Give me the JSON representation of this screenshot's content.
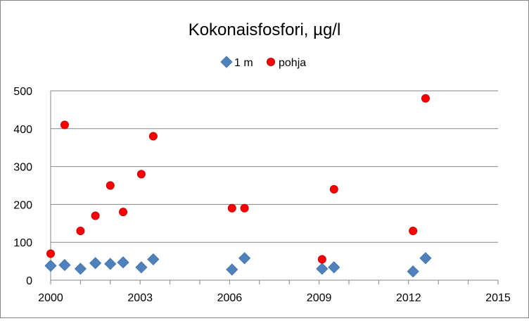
{
  "chart_data": {
    "type": "scatter",
    "title": "Kokonaisfosfori, µg/l",
    "xlabel": "",
    "ylabel": "",
    "xlim": [
      2000,
      2015
    ],
    "ylim": [
      0,
      500
    ],
    "xticks": [
      2000,
      2003,
      2006,
      2009,
      2012,
      2015
    ],
    "yticks": [
      0,
      100,
      200,
      300,
      400,
      500
    ],
    "grid": "horizontal",
    "legend": "top-center",
    "series": [
      {
        "name": "1 m",
        "color": "#4F81BD",
        "marker": "diamond",
        "x": [
          2000.0,
          2000.47,
          2001.0,
          2001.5,
          2002.0,
          2002.43,
          2003.04,
          2003.44,
          2006.08,
          2006.5,
          2009.1,
          2009.5,
          2012.15,
          2012.57
        ],
        "y": [
          38,
          40,
          30,
          45,
          43,
          47,
          34,
          55,
          28,
          58,
          30,
          34,
          23,
          58
        ]
      },
      {
        "name": "pohja",
        "color": "#FF0000",
        "marker": "circle",
        "x": [
          2000.0,
          2000.47,
          2001.0,
          2001.5,
          2002.0,
          2002.43,
          2003.04,
          2003.44,
          2006.08,
          2006.5,
          2009.1,
          2009.5,
          2012.15,
          2012.57
        ],
        "y": [
          70,
          410,
          130,
          170,
          250,
          180,
          280,
          380,
          190,
          190,
          55,
          240,
          130,
          480
        ]
      }
    ]
  }
}
